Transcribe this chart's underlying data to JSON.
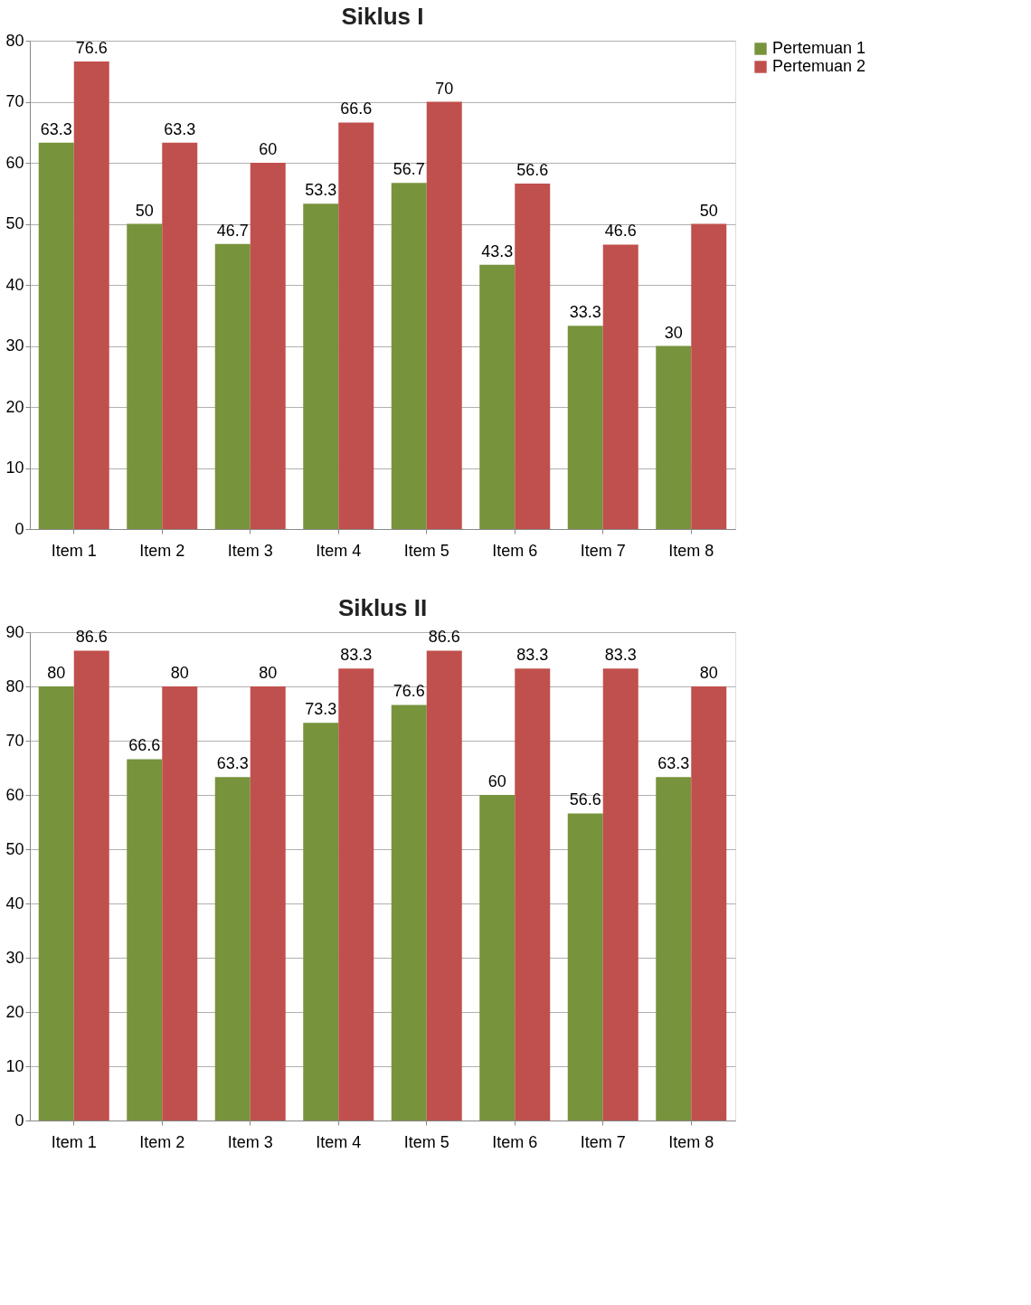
{
  "chart_data": [
    {
      "type": "bar",
      "title": "Siklus I",
      "categories": [
        "Item 1",
        "Item 2",
        "Item 3",
        "Item 4",
        "Item 5",
        "Item 6",
        "Item 7",
        "Item 8"
      ],
      "series": [
        {
          "name": "Pertemuan 1",
          "color": "#77933c",
          "values": [
            63.3,
            50,
            46.7,
            53.3,
            56.7,
            43.3,
            33.3,
            30
          ]
        },
        {
          "name": "Pertemuan 2",
          "color": "#c0504d",
          "values": [
            76.6,
            63.3,
            60,
            66.6,
            70,
            56.6,
            46.6,
            50
          ]
        }
      ],
      "ylim": [
        0,
        80
      ],
      "yticks": [
        0,
        10,
        20,
        30,
        40,
        50,
        60,
        70,
        80
      ],
      "grid": "y",
      "legend": "right",
      "data_labels": true
    },
    {
      "type": "bar",
      "title": "Siklus II",
      "categories": [
        "Item 1",
        "Item 2",
        "Item 3",
        "Item 4",
        "Item 5",
        "Item 6",
        "Item 7",
        "Item 8"
      ],
      "series": [
        {
          "name": "Pertemuan 1",
          "color": "#77933c",
          "values": [
            80,
            66.6,
            63.3,
            73.3,
            76.6,
            60,
            56.6,
            63.3
          ]
        },
        {
          "name": "Pertemuan 2",
          "color": "#c0504d",
          "values": [
            86.6,
            80,
            80,
            83.3,
            86.6,
            83.3,
            83.3,
            80
          ]
        }
      ],
      "ylim": [
        0,
        90
      ],
      "yticks": [
        0,
        10,
        20,
        30,
        40,
        50,
        60,
        70,
        80,
        90
      ],
      "grid": "y",
      "legend": "right",
      "data_labels": true
    }
  ]
}
